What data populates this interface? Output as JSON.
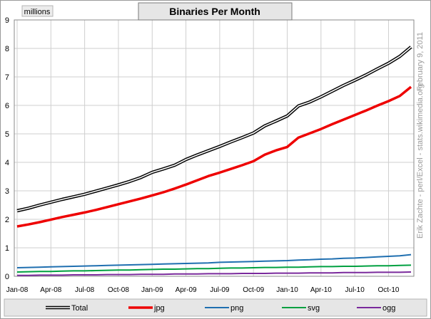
{
  "chart_data": {
    "type": "line",
    "title": "Binaries Per Month",
    "unit_label": "millions",
    "credit": "Erik Zachte - perl/Excel - stats.wikimedia.org",
    "date": "February 9, 2011",
    "ylim": [
      0,
      9
    ],
    "y_ticks": [
      "0",
      "1",
      "2",
      "3",
      "4",
      "5",
      "6",
      "7",
      "8",
      "9"
    ],
    "x_tick_labels": [
      "Jan-08",
      "Apr-08",
      "Jul-08",
      "Oct-08",
      "Jan-09",
      "Apr-09",
      "Jul-09",
      "Oct-09",
      "Jan-10",
      "Apr-10",
      "Jul-10",
      "Oct-10"
    ],
    "grid": true,
    "legend_position": "bottom",
    "months": [
      "Jan-08",
      "Feb-08",
      "Mar-08",
      "Apr-08",
      "May-08",
      "Jun-08",
      "Jul-08",
      "Aug-08",
      "Sep-08",
      "Oct-08",
      "Nov-08",
      "Dec-08",
      "Jan-09",
      "Feb-09",
      "Mar-09",
      "Apr-09",
      "May-09",
      "Jun-09",
      "Jul-09",
      "Aug-09",
      "Sep-09",
      "Oct-09",
      "Nov-09",
      "Dec-09",
      "Jan-10",
      "Feb-10",
      "Mar-10",
      "Apr-10",
      "May-10",
      "Jun-10",
      "Jul-10",
      "Aug-10",
      "Sep-10",
      "Oct-10",
      "Nov-10",
      "Dec-10"
    ],
    "series": [
      {
        "name": "Total",
        "color": "#000000",
        "style": "double",
        "values": [
          2.3,
          2.39,
          2.5,
          2.6,
          2.7,
          2.79,
          2.88,
          2.99,
          3.1,
          3.21,
          3.33,
          3.47,
          3.65,
          3.77,
          3.9,
          4.1,
          4.26,
          4.41,
          4.56,
          4.72,
          4.87,
          5.03,
          5.28,
          5.45,
          5.63,
          5.98,
          6.12,
          6.3,
          6.5,
          6.7,
          6.88,
          7.07,
          7.28,
          7.48,
          7.72,
          8.05
        ]
      },
      {
        "name": "jpg",
        "color": "#ee0000",
        "style": "thick",
        "values": [
          1.75,
          1.82,
          1.9,
          1.99,
          2.08,
          2.16,
          2.24,
          2.33,
          2.43,
          2.53,
          2.63,
          2.73,
          2.84,
          2.95,
          3.08,
          3.22,
          3.37,
          3.52,
          3.64,
          3.77,
          3.9,
          4.04,
          4.27,
          4.42,
          4.54,
          4.87,
          5.02,
          5.17,
          5.34,
          5.5,
          5.66,
          5.82,
          5.99,
          6.15,
          6.33,
          6.65
        ]
      },
      {
        "name": "png",
        "color": "#1f6fb0",
        "style": "normal",
        "values": [
          0.3,
          0.31,
          0.32,
          0.33,
          0.34,
          0.35,
          0.36,
          0.37,
          0.38,
          0.39,
          0.4,
          0.41,
          0.42,
          0.43,
          0.44,
          0.45,
          0.46,
          0.47,
          0.49,
          0.5,
          0.51,
          0.52,
          0.53,
          0.54,
          0.55,
          0.57,
          0.58,
          0.6,
          0.61,
          0.63,
          0.64,
          0.66,
          0.68,
          0.7,
          0.72,
          0.76
        ]
      },
      {
        "name": "svg",
        "color": "#00a040",
        "style": "normal",
        "values": [
          0.15,
          0.16,
          0.17,
          0.17,
          0.18,
          0.19,
          0.19,
          0.2,
          0.21,
          0.22,
          0.22,
          0.23,
          0.24,
          0.25,
          0.25,
          0.26,
          0.27,
          0.27,
          0.28,
          0.29,
          0.29,
          0.3,
          0.31,
          0.31,
          0.32,
          0.32,
          0.33,
          0.34,
          0.34,
          0.35,
          0.35,
          0.36,
          0.37,
          0.37,
          0.38,
          0.39
        ]
      },
      {
        "name": "ogg",
        "color": "#7a2a9c",
        "style": "normal",
        "values": [
          0.03,
          0.03,
          0.04,
          0.04,
          0.04,
          0.05,
          0.05,
          0.05,
          0.06,
          0.06,
          0.06,
          0.07,
          0.07,
          0.07,
          0.08,
          0.08,
          0.08,
          0.09,
          0.09,
          0.09,
          0.1,
          0.1,
          0.1,
          0.11,
          0.11,
          0.11,
          0.12,
          0.12,
          0.12,
          0.13,
          0.13,
          0.13,
          0.14,
          0.14,
          0.14,
          0.15
        ]
      }
    ]
  }
}
